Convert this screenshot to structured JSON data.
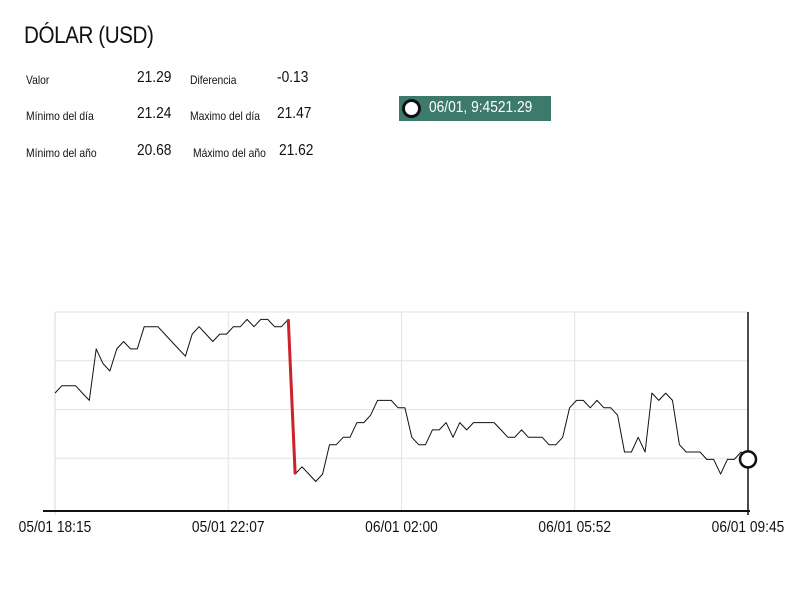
{
  "page_title": "DÓLAR (USD)",
  "stats": {
    "valor_label": "Valor",
    "valor": "21.29",
    "diferencia_label": "Diferencia",
    "diferencia": "-0.13",
    "min_dia_label": "Mínimo del día",
    "min_dia": "21.24",
    "max_dia_label": "Maximo del día",
    "max_dia": "21.47",
    "min_anio_label": "Mínimo del año",
    "min_anio": "20.68",
    "max_anio_label": "Máximo del año",
    "max_anio": "21.62"
  },
  "tooltip": {
    "text": "06/01, 9:4521.29"
  },
  "chart_data": {
    "type": "line",
    "title": "",
    "xlabel": "",
    "ylabel": "",
    "x_ticks": [
      "05/01 18:15",
      "05/01 22:07",
      "06/01 02:00",
      "06/01 05:52",
      "06/01 09:45"
    ],
    "ylim": [
      21.22,
      21.49
    ],
    "grid": true,
    "highlight_color": "#cc2229",
    "line_color": "#111111",
    "hover_marker": {
      "x": "06/01 09:45",
      "y": 21.29
    },
    "values": [
      21.38,
      21.39,
      21.39,
      21.39,
      21.38,
      21.37,
      21.44,
      21.42,
      21.41,
      21.44,
      21.45,
      21.44,
      21.44,
      21.47,
      21.47,
      21.47,
      21.46,
      21.45,
      21.44,
      21.43,
      21.46,
      21.47,
      21.46,
      21.45,
      21.46,
      21.46,
      21.47,
      21.47,
      21.48,
      21.47,
      21.48,
      21.48,
      21.47,
      21.47,
      21.48,
      21.27,
      21.28,
      21.27,
      21.26,
      21.27,
      21.31,
      21.31,
      21.32,
      21.32,
      21.34,
      21.34,
      21.35,
      21.37,
      21.37,
      21.37,
      21.36,
      21.36,
      21.32,
      21.31,
      21.31,
      21.33,
      21.33,
      21.34,
      21.32,
      21.34,
      21.33,
      21.34,
      21.34,
      21.34,
      21.34,
      21.33,
      21.32,
      21.32,
      21.33,
      21.32,
      21.32,
      21.32,
      21.31,
      21.31,
      21.32,
      21.36,
      21.37,
      21.37,
      21.36,
      21.37,
      21.36,
      21.36,
      21.35,
      21.3,
      21.3,
      21.32,
      21.3,
      21.38,
      21.37,
      21.38,
      21.37,
      21.31,
      21.3,
      21.3,
      21.3,
      21.29,
      21.29,
      21.27,
      21.29,
      21.29,
      21.3,
      21.29
    ]
  }
}
